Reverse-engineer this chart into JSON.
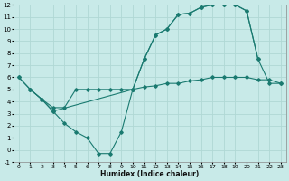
{
  "xlabel": "Humidex (Indice chaleur)",
  "background_color": "#c8eae8",
  "grid_color": "#b0d8d4",
  "line_color": "#1a7a70",
  "xlim": [
    -0.5,
    23.5
  ],
  "ylim": [
    -1,
    12
  ],
  "xticks": [
    0,
    1,
    2,
    3,
    4,
    5,
    6,
    7,
    8,
    9,
    10,
    11,
    12,
    13,
    14,
    15,
    16,
    17,
    18,
    19,
    20,
    21,
    22,
    23
  ],
  "yticks": [
    -1,
    0,
    1,
    2,
    3,
    4,
    5,
    6,
    7,
    8,
    9,
    10,
    11,
    12
  ],
  "series": [
    {
      "x": [
        0,
        1,
        2,
        3,
        10,
        11,
        12,
        13,
        14,
        15,
        16,
        17,
        18,
        19,
        20,
        21
      ],
      "y": [
        6,
        5,
        4.2,
        3.2,
        5,
        7.5,
        9.5,
        10,
        11.2,
        11.3,
        11.8,
        12,
        12,
        12,
        11.5,
        7.5
      ]
    },
    {
      "x": [
        0,
        1,
        2,
        3,
        4,
        5,
        6,
        7,
        8,
        9,
        10,
        11,
        12,
        13,
        14,
        15,
        16,
        17,
        18,
        19,
        20,
        21,
        22,
        23
      ],
      "y": [
        6,
        5,
        4.2,
        3.2,
        2.2,
        1.5,
        1.0,
        -0.3,
        -0.3,
        1.5,
        5,
        7.5,
        9.5,
        10,
        11.2,
        11.3,
        11.8,
        12,
        12,
        12,
        11.5,
        7.5,
        5.5,
        5.5
      ]
    },
    {
      "x": [
        1,
        2,
        3,
        4,
        5,
        6,
        7,
        8,
        9,
        10,
        11,
        12,
        13,
        14,
        15,
        16,
        17,
        18,
        19,
        20,
        21,
        22,
        23
      ],
      "y": [
        5,
        4.2,
        3.5,
        3.5,
        5,
        5,
        5,
        5,
        5,
        5,
        5.2,
        5.3,
        5.5,
        5.5,
        5.7,
        5.8,
        6,
        6,
        6,
        6,
        5.8,
        5.8,
        5.5
      ]
    }
  ]
}
